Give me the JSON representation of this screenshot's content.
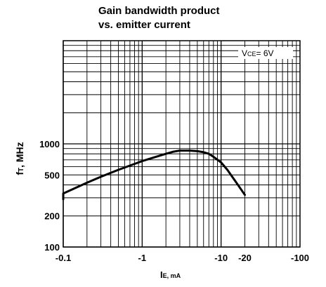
{
  "chart_data": {
    "type": "line",
    "title_line1": "Gain bandwidth product",
    "title_line2": "vs. emitter current",
    "xlabel_main": "I",
    "xlabel_sub": "E, mA",
    "ylabel_main": "f",
    "ylabel_sub": "T",
    "ylabel_rest": ", MHz",
    "x_scale": "log",
    "y_scale": "log",
    "x_ticks": [
      {
        "value": 0.1,
        "label": "-0.1"
      },
      {
        "value": 1,
        "label": "-1"
      },
      {
        "value": 10,
        "label": "-10"
      },
      {
        "value": 20,
        "label": "-20"
      },
      {
        "value": 100,
        "label": "-100"
      }
    ],
    "y_ticks": [
      {
        "value": 100,
        "label": "100"
      },
      {
        "value": 200,
        "label": "200"
      },
      {
        "value": 500,
        "label": "500"
      },
      {
        "value": 1000,
        "label": "1000"
      }
    ],
    "xlim": [
      0.1,
      100
    ],
    "ylim": [
      100,
      10000
    ],
    "grid": true,
    "annotation": {
      "main": "V",
      "sub": "CE",
      "rest": "= 6V"
    },
    "series": [
      {
        "x": [
          0.075,
          0.1,
          0.2,
          0.3,
          0.5,
          1.0,
          1.5,
          2.0,
          2.5,
          3.0,
          4.0,
          5.0,
          6.0,
          7.0,
          8.0,
          10.0,
          12.0,
          15.0,
          20.0
        ],
        "y": [
          290,
          330,
          420,
          480,
          560,
          680,
          750,
          800,
          840,
          860,
          860,
          850,
          830,
          800,
          750,
          660,
          560,
          440,
          320
        ]
      }
    ]
  }
}
